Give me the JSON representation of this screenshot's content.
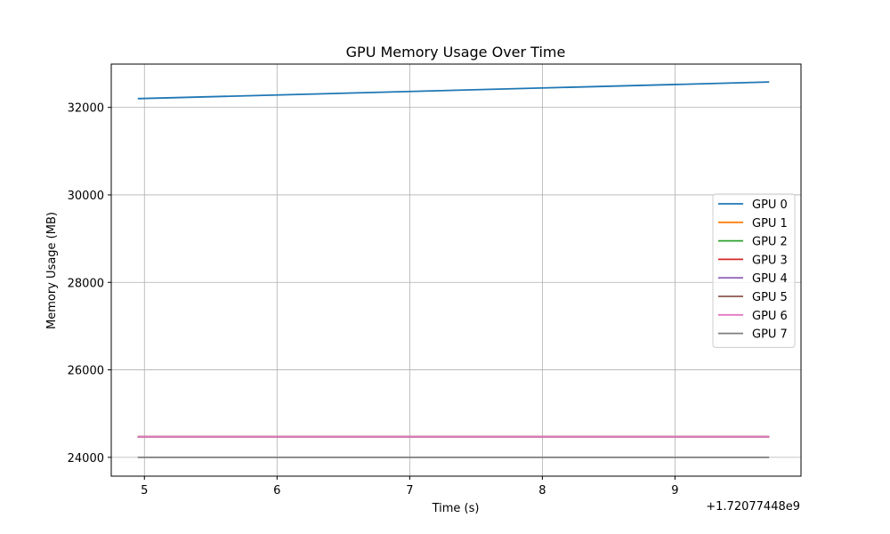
{
  "chart_data": {
    "type": "line",
    "title": "GPU Memory Usage Over Time",
    "xlabel": "Time (s)",
    "ylabel": "Memory Usage (MB)",
    "x_offset_label": "+1.72077448e9",
    "xlim": [
      4.75,
      9.95
    ],
    "ylim": [
      23570,
      32990
    ],
    "x_ticks": [
      5,
      6,
      7,
      8,
      9
    ],
    "x_tick_labels": [
      "5",
      "6",
      "7",
      "8",
      "9"
    ],
    "y_ticks": [
      24000,
      26000,
      28000,
      30000,
      32000
    ],
    "y_tick_labels": [
      "24000",
      "26000",
      "28000",
      "30000",
      "32000"
    ],
    "grid": true,
    "legend_position": "center-right",
    "series": [
      {
        "name": "GPU 0",
        "color": "#1f77b4",
        "x": [
          4.95,
          9.71
        ],
        "y": [
          32200,
          32580
        ]
      },
      {
        "name": "GPU 1",
        "color": "#ff7f0e",
        "x": [
          4.95,
          9.71
        ],
        "y": [
          24470,
          24470
        ]
      },
      {
        "name": "GPU 2",
        "color": "#2ca02c",
        "x": [
          4.95,
          9.71
        ],
        "y": [
          24470,
          24470
        ]
      },
      {
        "name": "GPU 3",
        "color": "#d62728",
        "x": [
          4.95,
          9.71
        ],
        "y": [
          24470,
          24470
        ]
      },
      {
        "name": "GPU 4",
        "color": "#9467bd",
        "x": [
          4.95,
          9.71
        ],
        "y": [
          24470,
          24470
        ]
      },
      {
        "name": "GPU 5",
        "color": "#8c564b",
        "x": [
          4.95,
          9.71
        ],
        "y": [
          24470,
          24470
        ]
      },
      {
        "name": "GPU 6",
        "color": "#e377c2",
        "x": [
          4.95,
          9.71
        ],
        "y": [
          24470,
          24470
        ]
      },
      {
        "name": "GPU 7",
        "color": "#7f7f7f",
        "x": [
          4.95,
          9.71
        ],
        "y": [
          24000,
          24000
        ]
      }
    ]
  }
}
